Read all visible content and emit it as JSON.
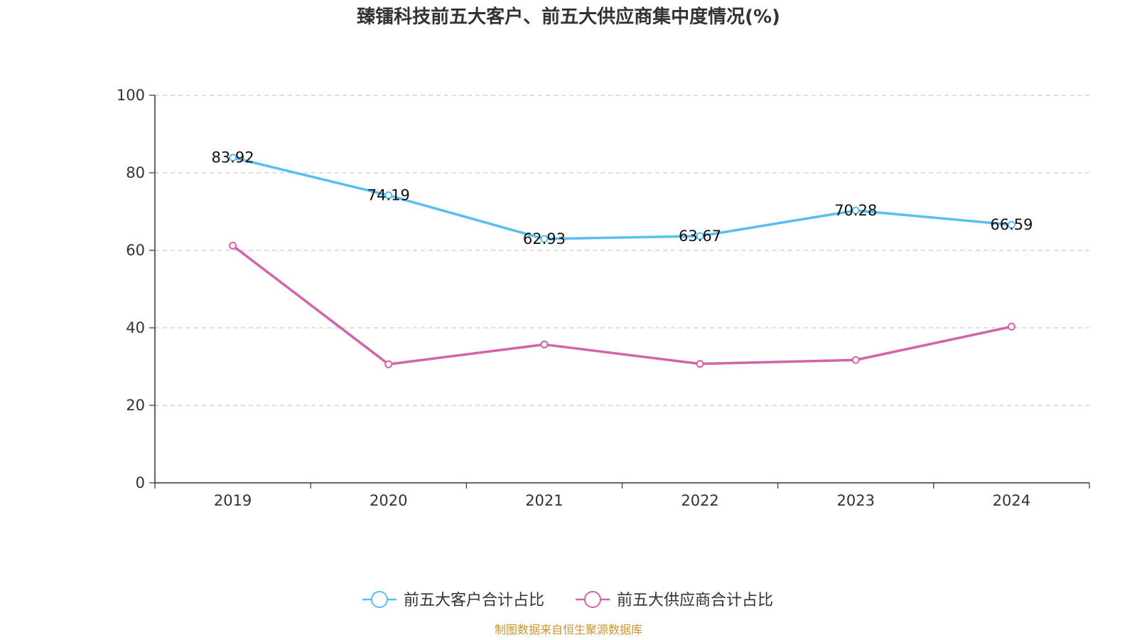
{
  "chart_data": {
    "type": "line",
    "title": "臻镭科技前五大客户、前五大供应商集中度情况(%)",
    "categories": [
      "2019",
      "2020",
      "2021",
      "2022",
      "2023",
      "2024"
    ],
    "ylim": [
      0,
      100
    ],
    "yticks": [
      0,
      20,
      40,
      60,
      80,
      100
    ],
    "grid": true,
    "legend_position": "bottom-center",
    "series": [
      {
        "name": "前五大客户合计占比",
        "color": "#5bbdf0",
        "values": [
          83.92,
          74.19,
          62.93,
          63.67,
          70.28,
          66.59
        ],
        "labels": [
          "83.92",
          "74.19",
          "62.93",
          "63.67",
          "70.28",
          "66.59"
        ]
      },
      {
        "name": "前五大供应商合计占比",
        "color": "#d264aa",
        "values": [
          61.2,
          30.6,
          35.7,
          30.7,
          31.7,
          40.3
        ],
        "labels": []
      }
    ],
    "source": "制图数据来自恒生聚源数据库"
  }
}
